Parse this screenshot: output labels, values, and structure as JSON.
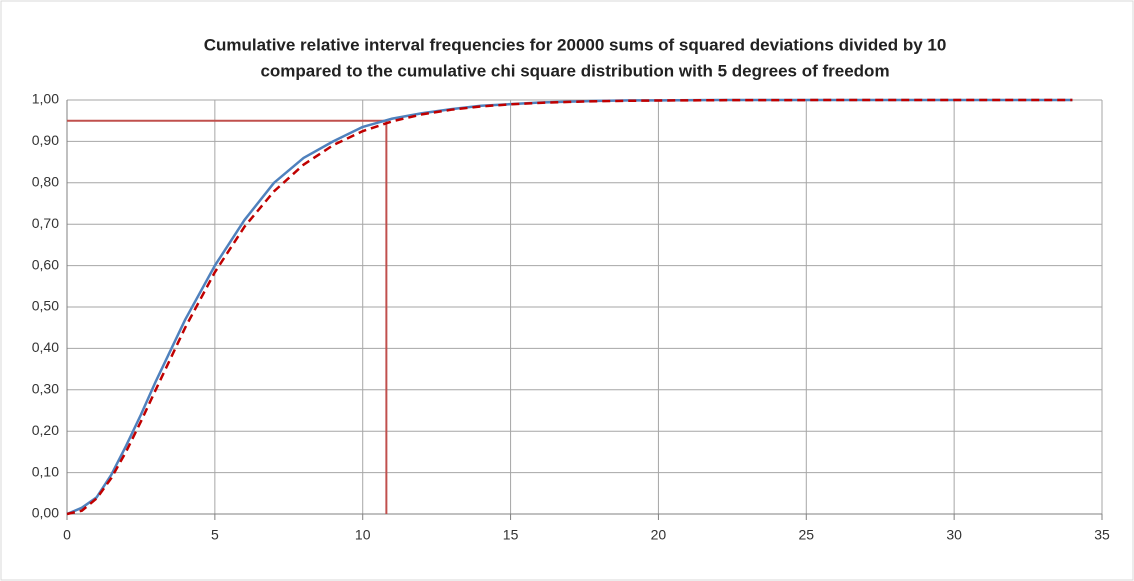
{
  "chart_data": {
    "type": "line",
    "title": [
      "Cumulative relative interval frequencies  for 20000 sums of squared deviations divided by 10",
      "compared to the cumulative chi square distribution with 5 degrees of freedom"
    ],
    "x": [
      0,
      0.5,
      1,
      1.5,
      2,
      2.5,
      3,
      4,
      5,
      6,
      7,
      8,
      9,
      10,
      11,
      12,
      13,
      14,
      15,
      16,
      17,
      18,
      19,
      20,
      22,
      24,
      26,
      28,
      30,
      32,
      34
    ],
    "series": [
      {
        "color": "#4f81bd",
        "dashed": false,
        "values": [
          0,
          0.015,
          0.04,
          0.095,
          0.165,
          0.24,
          0.32,
          0.47,
          0.6,
          0.71,
          0.8,
          0.86,
          0.9,
          0.935,
          0.955,
          0.968,
          0.978,
          0.986,
          0.99,
          0.994,
          0.996,
          0.998,
          0.999,
          0.999,
          1,
          1,
          1,
          1,
          1,
          1,
          1
        ]
      },
      {
        "color": "#c00000",
        "dashed": true,
        "values": [
          0,
          0.0079,
          0.0374,
          0.0869,
          0.1509,
          0.2235,
          0.3,
          0.4506,
          0.5841,
          0.6937,
          0.7794,
          0.8438,
          0.8909,
          0.9248,
          0.9486,
          0.9652,
          0.9766,
          0.9844,
          0.9896,
          0.9932,
          0.9955,
          0.9971,
          0.9981,
          0.9988,
          0.9995,
          0.9998,
          0.9999,
          1,
          1,
          1,
          1
        ]
      }
    ],
    "reference": {
      "x": 10.8,
      "y": 0.95,
      "color": "#c0504d"
    },
    "xlim": [
      0,
      35
    ],
    "xticks": [
      0,
      5,
      10,
      15,
      20,
      25,
      30,
      35
    ],
    "ylim": [
      0,
      1
    ],
    "yticks": [
      {
        "value": 0,
        "label": "0,00"
      },
      {
        "value": 0.1,
        "label": "0,10"
      },
      {
        "value": 0.2,
        "label": "0,20"
      },
      {
        "value": 0.3,
        "label": "0,30"
      },
      {
        "value": 0.4,
        "label": "0,40"
      },
      {
        "value": 0.5,
        "label": "0,50"
      },
      {
        "value": 0.6,
        "label": "0,60"
      },
      {
        "value": 0.7,
        "label": "0,70"
      },
      {
        "value": 0.8,
        "label": "0,80"
      },
      {
        "value": 0.9,
        "label": "0,90"
      },
      {
        "value": 1,
        "label": "1,00"
      }
    ],
    "grid": true
  }
}
